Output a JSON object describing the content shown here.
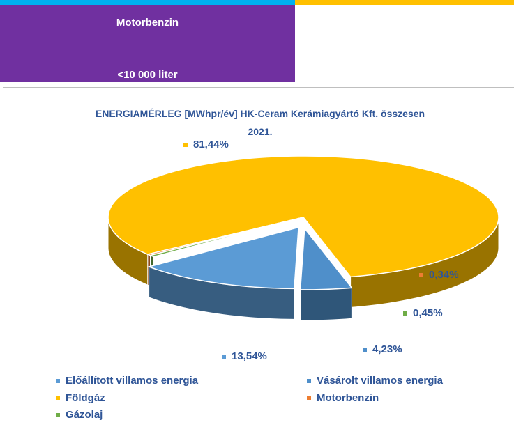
{
  "header": {
    "title": "Motorbenzin",
    "subtitle": "<10 000 liter"
  },
  "chart_data": {
    "type": "pie",
    "title": "ENERGIAMÉRLEG [MWhpr/év] HK-Ceram Kerámiagyártó Kft. összesen 2021.",
    "categories": [
      "Előállított villamos energia",
      "Vásárolt villamos energia",
      "Földgáz",
      "Motorbenzin",
      "Gázolaj"
    ],
    "values": [
      13.54,
      4.23,
      81.44,
      0.34,
      0.45
    ],
    "value_labels": [
      "13,54%",
      "4,23%",
      "81,44%",
      "0,34%",
      "0,45%"
    ],
    "colors": [
      "#5b9bd5",
      "#4f8fca",
      "#ffc000",
      "#ed7d31",
      "#70ad47"
    ]
  }
}
